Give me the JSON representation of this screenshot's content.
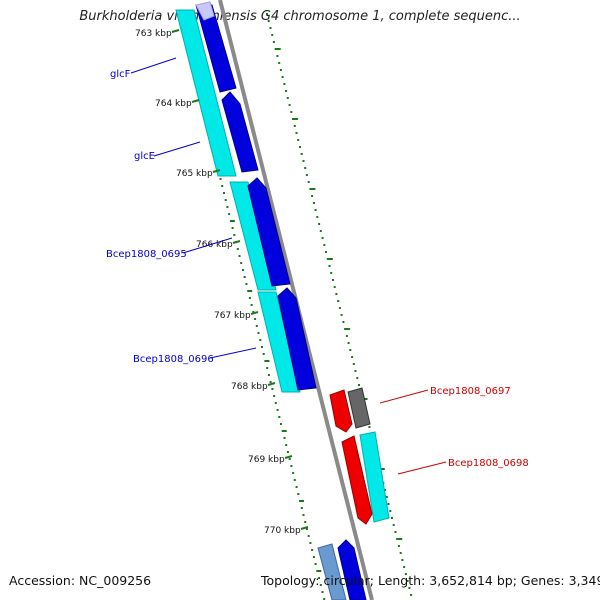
{
  "title": "Burkholderia vietnamiensis G4 chromosome 1, complete sequenc...",
  "footer": {
    "accession_label": "Accession:",
    "accession": "NC_009256",
    "topology_label": "Topology:",
    "topology": "circular",
    "length_label": "Length:",
    "length": "3,652,814 bp",
    "genes_label": "Genes:",
    "genes": "3,349"
  },
  "ticks": [
    {
      "id": "763",
      "label": "763 kbp"
    },
    {
      "id": "764",
      "label": "764 kbp"
    },
    {
      "id": "765",
      "label": "765 kbp"
    },
    {
      "id": "766",
      "label": "766 kbp"
    },
    {
      "id": "767",
      "label": "767 kbp"
    },
    {
      "id": "768",
      "label": "768 kbp"
    },
    {
      "id": "769",
      "label": "769 kbp"
    },
    {
      "id": "770",
      "label": "770 kbp"
    }
  ],
  "gene_labels": [
    {
      "id": "glcF",
      "label": "glcF"
    },
    {
      "id": "glcE",
      "label": "glcE"
    },
    {
      "id": "bcep0695",
      "label": "Bcep1808_0695"
    },
    {
      "id": "bcep0696",
      "label": "Bcep1808_0696"
    },
    {
      "id": "bcep0697",
      "label": "Bcep1808_0697"
    },
    {
      "id": "bcep0698",
      "label": "Bcep1808_0698"
    }
  ],
  "colors": {
    "cds_blue": "#0000dd",
    "cds_cyan": "#00e0e0",
    "cds_red": "#ee0000",
    "cds_gray": "#666666",
    "backbone": "#888888",
    "tick_green": "#006600",
    "label_blue": "#0000cc",
    "label_red": "#cc0000"
  }
}
